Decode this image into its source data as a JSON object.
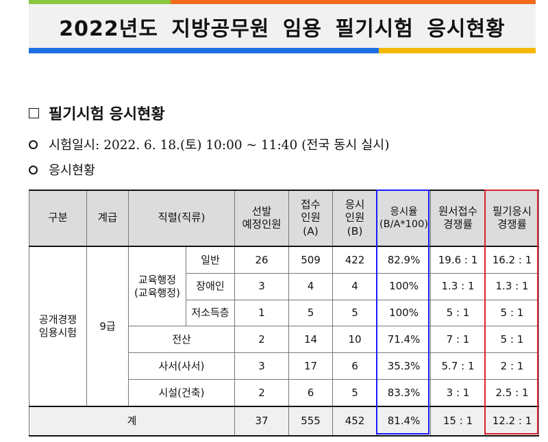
{
  "colors": {
    "bar_green": "#8cc63f",
    "bar_orange": "#f26b1d",
    "bar_blue": "#1e6fe0",
    "bar_yellow": "#f5b800",
    "title_bg": "#f1f1f1",
    "header_bg": "#dcdcdc",
    "highlight_blue": "#1a1aff",
    "highlight_red": "#e0202a"
  },
  "title": "2022년도 지방공무원 임용 필기시험 응시현황",
  "section_heading": "필기시험 응시현황",
  "bullets": [
    "시험일시: 2022. 6. 18.(토) 10:00 ~ 11:40 (전국 동시 실시)",
    "응시현황"
  ],
  "table": {
    "headers": {
      "category": "구분",
      "grade": "계급",
      "series": "직렬(직류)",
      "planned_line1": "선발",
      "planned_line2": "예정인원",
      "applied_line1": "접수",
      "applied_line2": "인원",
      "applied_line3": "(A)",
      "attended_line1": "응시",
      "attended_line2": "인원",
      "attended_line3": "(B)",
      "rate_line1": "응시율",
      "rate_line2": "(B/A*100)",
      "app_comp_line1": "원서접수",
      "app_comp_line2": "경쟁률",
      "exam_comp_line1": "필기응시",
      "exam_comp_line2": "경쟁률"
    },
    "category": {
      "line1": "공개경쟁",
      "line2": "임용시험"
    },
    "grade": "9급",
    "group_edu": {
      "line1": "교육행정",
      "line2": "(교육행정)"
    },
    "rows": [
      {
        "sub": "일반",
        "planned": "26",
        "applied": "509",
        "attended": "422",
        "rate": "82.9%",
        "app_comp": "19.6 : 1",
        "exam_comp": "16.2 : 1"
      },
      {
        "sub": "장애인",
        "planned": "3",
        "applied": "4",
        "attended": "4",
        "rate": "100%",
        "app_comp": "1.3 : 1",
        "exam_comp": "1.3 : 1"
      },
      {
        "sub": "저소득층",
        "planned": "1",
        "applied": "5",
        "attended": "5",
        "rate": "100%",
        "app_comp": "5 : 1",
        "exam_comp": "5 : 1"
      },
      {
        "series": "전산",
        "planned": "2",
        "applied": "14",
        "attended": "10",
        "rate": "71.4%",
        "app_comp": "7 : 1",
        "exam_comp": "5 : 1"
      },
      {
        "series": "사서(사서)",
        "planned": "3",
        "applied": "17",
        "attended": "6",
        "rate": "35.3%",
        "app_comp": "5.7 : 1",
        "exam_comp": "2 : 1"
      },
      {
        "series": "시설(건축)",
        "planned": "2",
        "applied": "6",
        "attended": "5",
        "rate": "83.3%",
        "app_comp": "3 : 1",
        "exam_comp": "2.5 : 1"
      }
    ],
    "total": {
      "label": "계",
      "planned": "37",
      "applied": "555",
      "attended": "452",
      "rate": "81.4%",
      "app_comp": "15 : 1",
      "exam_comp": "12.2 : 1"
    }
  }
}
